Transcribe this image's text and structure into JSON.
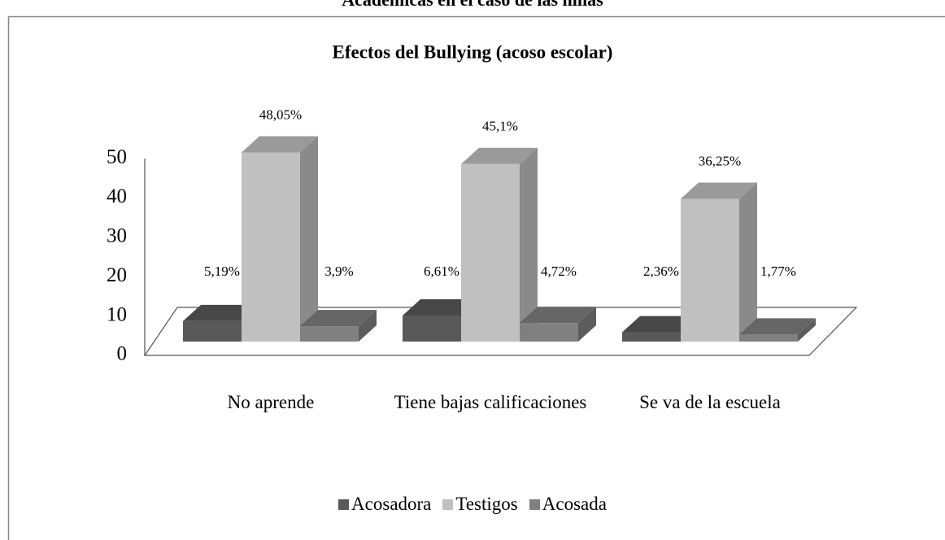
{
  "caption": "Académicas en el caso de las niñas",
  "chart_data": {
    "type": "bar3d",
    "title": "Efectos del Bullying (acoso escolar)",
    "categories": [
      "No aprende",
      "Tiene bajas calificaciones",
      "Se va de la escuela"
    ],
    "series": [
      {
        "name": "Acosadora",
        "color": "#595959",
        "values": [
          5.19,
          6.61,
          2.36
        ],
        "value_labels": [
          "5,19%",
          "6,61%",
          "2,36%"
        ]
      },
      {
        "name": "Testigos",
        "color": "#c0c0c0",
        "values": [
          48.05,
          45.1,
          36.25
        ],
        "value_labels": [
          "48,05%",
          "45,1%",
          "36,25%"
        ]
      },
      {
        "name": "Acosada",
        "color": "#808080",
        "values": [
          3.9,
          4.72,
          1.77
        ],
        "value_labels": [
          "3,9%",
          "4,72%",
          "1,77%"
        ]
      }
    ],
    "ylim": [
      0,
      50
    ],
    "yticks": [
      0,
      10,
      20,
      30,
      40,
      50
    ],
    "legend": "bottom",
    "grid": false
  }
}
